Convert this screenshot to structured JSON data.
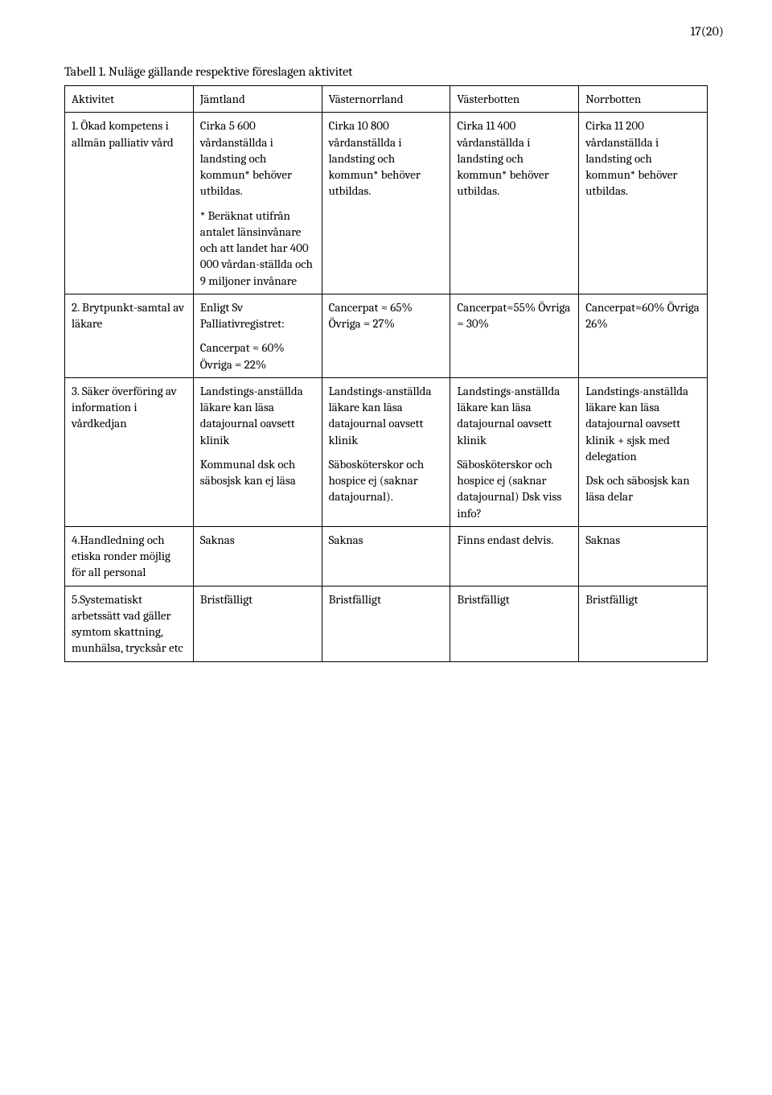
{
  "page_number": "17(20)",
  "table_title": "Tabell 1. Nuläge gällande respektive föreslagen aktivitet",
  "columns": [
    "Aktivitet",
    "Jämtland",
    "Västernorrland",
    "Västerbotten",
    "Norrbotten"
  ],
  "rows": [
    {
      "activity": "1. Ökad kompetens i allmän palliativ vård",
      "jamt": [
        "Cirka 5 600 vårdanställda i landsting och kommun* behöver utbildas.",
        "* Beräknat utifrån antalet länsinvånare och att landet har 400 000 vårdan-ställda och 9 miljoner invånare"
      ],
      "vnorr": [
        "Cirka 10 800 vårdanställda i landsting och kommun* behöver utbildas."
      ],
      "vbott": [
        "Cirka 11 400 vårdanställda i landsting och kommun* behöver utbildas."
      ],
      "norr": [
        "Cirka 11 200 vårdanställda i landsting och kommun* behöver utbildas."
      ]
    },
    {
      "activity": "2. Brytpunkt-samtal av läkare",
      "jamt": [
        "Enligt Sv Palliativregistret:",
        "Cancerpat ≈ 60% Övriga = 22%"
      ],
      "vnorr": [
        "Cancerpat ≈ 65% Övriga = 27%"
      ],
      "vbott": [
        "Cancerpat≈55% Övriga = 30%"
      ],
      "norr": [
        "Cancerpat≈60% Övriga 26%"
      ]
    },
    {
      "activity": "3. Säker överföring av information i vårdkedjan",
      "jamt": [
        "Landstings-anställda läkare kan läsa datajournal oavsett klinik",
        "Kommunal dsk och säbosjsk kan ej läsa"
      ],
      "vnorr": [
        "Landstings-anställda läkare kan läsa datajournal oavsett klinik",
        "Säbosköterskor och hospice ej (saknar datajournal)."
      ],
      "vbott": [
        "Landstings-anställda läkare kan läsa datajournal oavsett klinik",
        "Säbosköterskor och hospice ej (saknar datajournal) Dsk viss info?"
      ],
      "norr": [
        "Landstings-anställda läkare kan läsa datajournal oavsett klinik + sjsk med delegation",
        "Dsk och säbosjsk kan läsa delar"
      ]
    },
    {
      "activity": "4.Handledning och etiska ronder möjlig för all personal",
      "jamt": [
        "Saknas"
      ],
      "vnorr": [
        "Saknas"
      ],
      "vbott": [
        "Finns endast delvis."
      ],
      "norr": [
        "Saknas"
      ]
    },
    {
      "activity": "5.Systematiskt arbetssätt vad gäller symtom skattning, munhälsa, trycksår etc",
      "jamt": [
        "Bristfälligt"
      ],
      "vnorr": [
        "Bristfälligt"
      ],
      "vbott": [
        "Bristfälligt"
      ],
      "norr": [
        "Bristfälligt"
      ]
    }
  ]
}
